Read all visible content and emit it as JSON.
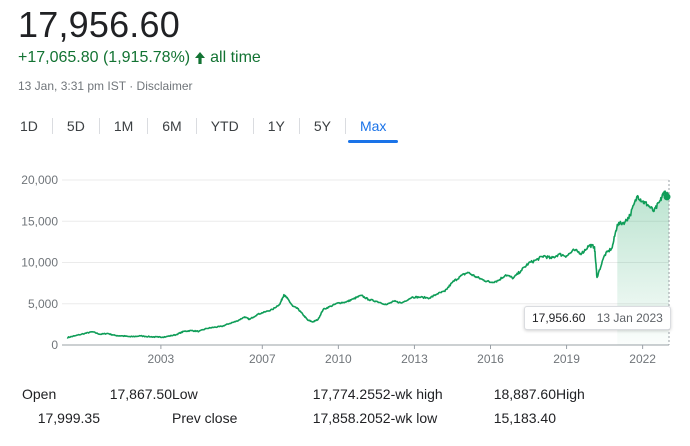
{
  "quote": {
    "price": "17,956.60",
    "change": "+17,065.80 (1,915.78%)",
    "period": "all time",
    "timestamp": "13 Jan, 3:31 pm IST",
    "separator": "·",
    "disclaimer": "Disclaimer",
    "up_color": "#137333",
    "arrow_icon": "arrow-up-icon"
  },
  "tabs": [
    {
      "label": "1D",
      "active": false
    },
    {
      "label": "5D",
      "active": false
    },
    {
      "label": "1M",
      "active": false
    },
    {
      "label": "6M",
      "active": false
    },
    {
      "label": "YTD",
      "active": false
    },
    {
      "label": "1Y",
      "active": false
    },
    {
      "label": "5Y",
      "active": false
    },
    {
      "label": "Max",
      "active": true
    }
  ],
  "chart_data": {
    "type": "area",
    "line_color": "#0f9d58",
    "yticks": [
      0,
      5000,
      10000,
      15000,
      20000
    ],
    "ytick_labels": [
      "0",
      "5,000",
      "10,000",
      "15,000",
      "20,000"
    ],
    "xticks": [
      2003,
      2007,
      2010,
      2013,
      2016,
      2019,
      2022
    ],
    "xtick_labels": [
      "2003",
      "2007",
      "2010",
      "2013",
      "2016",
      "2019",
      "2022"
    ],
    "xlim": [
      1999.1,
      2023.04
    ],
    "ylim": [
      0,
      20000
    ],
    "grid": true,
    "x": [
      1999.3,
      1999.6,
      2000.0,
      2000.3,
      2000.6,
      2000.9,
      2001.2,
      2001.5,
      2001.8,
      2002.2,
      2002.6,
      2002.9,
      2003.2,
      2003.6,
      2003.9,
      2004.2,
      2004.5,
      2004.8,
      2005.1,
      2005.4,
      2005.7,
      2006.0,
      2006.3,
      2006.5,
      2006.8,
      2007.1,
      2007.4,
      2007.7,
      2007.85,
      2008.0,
      2008.2,
      2008.4,
      2008.6,
      2008.8,
      2009.0,
      2009.2,
      2009.4,
      2009.7,
      2010.0,
      2010.3,
      2010.6,
      2010.9,
      2011.2,
      2011.5,
      2011.9,
      2012.2,
      2012.5,
      2012.9,
      2013.2,
      2013.6,
      2013.9,
      2014.2,
      2014.5,
      2014.8,
      2015.1,
      2015.4,
      2015.7,
      2016.0,
      2016.3,
      2016.6,
      2016.9,
      2017.2,
      2017.5,
      2017.8,
      2018.1,
      2018.4,
      2018.7,
      2019.0,
      2019.3,
      2019.6,
      2019.9,
      2020.1,
      2020.2,
      2020.5,
      2020.8,
      2021.0,
      2021.3,
      2021.5,
      2021.8,
      2022.0,
      2022.2,
      2022.45,
      2022.7,
      2022.85,
      2023.04
    ],
    "y": [
      900,
      1100,
      1400,
      1600,
      1300,
      1400,
      1150,
      1100,
      1000,
      1100,
      1000,
      950,
      1000,
      1250,
      1650,
      1750,
      1650,
      2000,
      2150,
      2250,
      2600,
      2900,
      3400,
      3100,
      3700,
      4000,
      4300,
      5000,
      6100,
      5600,
      4700,
      4400,
      3700,
      3000,
      2800,
      3100,
      4300,
      4700,
      5100,
      5200,
      5600,
      6000,
      5500,
      5300,
      4900,
      5300,
      5100,
      5800,
      5800,
      5700,
      6200,
      6500,
      7600,
      8300,
      8800,
      8300,
      7900,
      7600,
      7800,
      8500,
      8100,
      9000,
      9900,
      10300,
      10800,
      10500,
      11000,
      10800,
      11500,
      11100,
      12100,
      11900,
      8200,
      10900,
      11800,
      14600,
      14900,
      15700,
      18100,
      17400,
      17000,
      16200,
      17500,
      18600,
      17956.6
    ]
  },
  "tooltip": {
    "value": "17,956.60",
    "date": "13 Jan 2023"
  },
  "stats": {
    "open_label": "Open",
    "open": "17,867.50",
    "high_label": "High",
    "high": "17,999.35",
    "low_label": "Low",
    "low": "17,774.25",
    "prev_label": "Prev close",
    "prev": "17,858.20",
    "wk52h_label": "52-wk high",
    "wk52h": "18,887.60",
    "wk52l_label": "52-wk low",
    "wk52l": "15,183.40"
  }
}
